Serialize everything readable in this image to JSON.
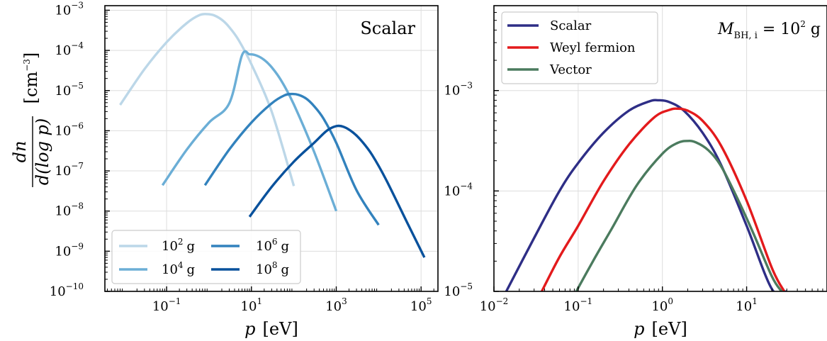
{
  "chart_data": [
    {
      "type": "line",
      "panel": "left",
      "title": "",
      "annotation": "Scalar",
      "xlabel_var": "p",
      "xlabel_unit": "[eV]",
      "ylabel_num": "dn",
      "ylabel_den": "d(log p)",
      "ylabel_unit": "[cm",
      "ylabel_unit_exp": "−3",
      "ylabel_unit_close": "]",
      "xscale": "log",
      "yscale": "log",
      "xlim": [
        0.0035,
        250000
      ],
      "ylim": [
        1e-10,
        0.0013
      ],
      "xticks": [
        {
          "value": 0.1,
          "base": "10",
          "exp": "−1"
        },
        {
          "value": 10,
          "base": "10",
          "exp": "1"
        },
        {
          "value": 1000,
          "base": "10",
          "exp": "3"
        },
        {
          "value": 100000,
          "base": "10",
          "exp": "5"
        }
      ],
      "yticks": [
        {
          "value": 1e-10,
          "base": "10",
          "exp": "−10"
        },
        {
          "value": 1e-09,
          "base": "10",
          "exp": "−9"
        },
        {
          "value": 1e-08,
          "base": "10",
          "exp": "−8"
        },
        {
          "value": 1e-07,
          "base": "10",
          "exp": "−7"
        },
        {
          "value": 1e-06,
          "base": "10",
          "exp": "−6"
        },
        {
          "value": 1e-05,
          "base": "10",
          "exp": "−5"
        },
        {
          "value": 0.0001,
          "base": "10",
          "exp": "−4"
        },
        {
          "value": 0.001,
          "base": "10",
          "exp": "−3"
        }
      ],
      "grid": true,
      "legend_position": "lower-left",
      "legend_columns": 2,
      "series": [
        {
          "name_base": "10",
          "name_exp": "2",
          "name_unit": "g",
          "color": "#bcd7e8",
          "x": [
            0.008,
            0.03,
            0.1,
            0.3,
            0.6,
            0.9,
            1.3,
            2,
            3,
            5,
            10,
            30,
            100
          ],
          "y": [
            4.4e-06,
            3.4e-05,
            0.00016,
            0.00048,
            0.00076,
            0.0008,
            0.00075,
            0.00058,
            0.00038,
            0.00018,
            4.5e-05,
            3e-06,
            4.2e-08
          ]
        },
        {
          "name_base": "10",
          "name_exp": "4",
          "name_unit": "g",
          "color": "#6baed6",
          "x": [
            0.08,
            0.3,
            1,
            3,
            6,
            9,
            13,
            20,
            30,
            50,
            100,
            300,
            1000
          ],
          "y": [
            4.4e-08,
            3.4e-07,
            1.6e-06,
            4.8e-06,
            7.6e-05,
            8e-05,
            7.5e-05,
            5.8e-05,
            3.8e-05,
            1.8e-05,
            4.5e-06,
            3e-07,
            1e-08
          ]
        },
        {
          "name_base": "10",
          "name_exp": "6",
          "name_unit": "g",
          "color": "#3282bd",
          "x": [
            0.8,
            3,
            10,
            30,
            60,
            90,
            130,
            200,
            300,
            500,
            1000,
            3000,
            10000
          ],
          "y": [
            4.4e-08,
            3.4e-07,
            1.6e-06,
            4.8e-06,
            7.6e-06,
            8.2e-06,
            7.8e-06,
            6.2e-06,
            4.1e-06,
            2e-06,
            5e-07,
            3.3e-08,
            4.5e-09
          ]
        },
        {
          "name_base": "10",
          "name_exp": "8",
          "name_unit": "g",
          "color": "#08519c",
          "x": [
            9,
            30,
            100,
            300,
            600,
            1000,
            1500,
            2500,
            4000,
            7000,
            15000,
            50000,
            120000
          ],
          "y": [
            7.2e-09,
            4e-08,
            1.7e-07,
            5e-07,
            1e-06,
            1.3e-06,
            1.25e-06,
            9e-07,
            5.5e-07,
            2.5e-07,
            6e-08,
            4.5e-09,
            7e-10
          ]
        }
      ]
    },
    {
      "type": "line",
      "panel": "right",
      "title": "",
      "annotation_var": "M",
      "annotation_sub": "BH, i",
      "annotation_eq": " = 10",
      "annotation_exp": "2",
      "annotation_unit": " g",
      "xlabel_var": "p",
      "xlabel_unit": "[eV]",
      "xscale": "log",
      "yscale": "log",
      "xlim": [
        0.01,
        90
      ],
      "ylim": [
        1e-05,
        0.007
      ],
      "xticks": [
        {
          "value": 0.01,
          "base": "10",
          "exp": "−2"
        },
        {
          "value": 0.1,
          "base": "10",
          "exp": "−1"
        },
        {
          "value": 1,
          "base": "10",
          "exp": "0"
        },
        {
          "value": 10,
          "base": "10",
          "exp": "1"
        }
      ],
      "yticks": [
        {
          "value": 1e-05,
          "base": "10",
          "exp": "−5"
        },
        {
          "value": 0.0001,
          "base": "10",
          "exp": "−4"
        },
        {
          "value": 0.001,
          "base": "10",
          "exp": "−3"
        }
      ],
      "grid": true,
      "legend_position": "top-left",
      "series": [
        {
          "name": "Scalar",
          "color": "#2e2e86",
          "x": [
            0.014,
            0.03,
            0.06,
            0.1,
            0.2,
            0.4,
            0.7,
            0.9,
            1.2,
            1.8,
            3,
            5,
            10,
            20,
            30
          ],
          "y": [
            1e-05,
            3.4e-05,
            0.0001,
            0.00019,
            0.00038,
            0.00063,
            0.00078,
            0.0008,
            0.00077,
            0.00063,
            0.00038,
            0.00018,
            4.5e-05,
            1.05e-05,
            1e-05
          ]
        },
        {
          "name": "Weyl fermion",
          "color": "#e31a1c",
          "x": [
            0.037,
            0.06,
            0.1,
            0.2,
            0.4,
            0.8,
            1.2,
            1.5,
            2,
            3,
            5,
            10,
            20,
            28
          ],
          "y": [
            1e-05,
            2.2e-05,
            4.5e-05,
            0.000125,
            0.00029,
            0.00054,
            0.00064,
            0.00066,
            0.00063,
            0.0005,
            0.00028,
            8e-05,
            1.7e-05,
            1e-05
          ]
        },
        {
          "name": "Vector",
          "color": "#4b7b5e",
          "x": [
            0.095,
            0.15,
            0.25,
            0.5,
            1,
            1.5,
            2,
            2.5,
            3.5,
            5,
            8,
            12,
            20,
            26
          ],
          "y": [
            1e-05,
            2e-05,
            4.2e-05,
            0.000115,
            0.000235,
            0.0003,
            0.000315,
            0.000305,
            0.000255,
            0.000175,
            8e-05,
            3.8e-05,
            1.4e-05,
            1e-05
          ]
        }
      ]
    }
  ]
}
